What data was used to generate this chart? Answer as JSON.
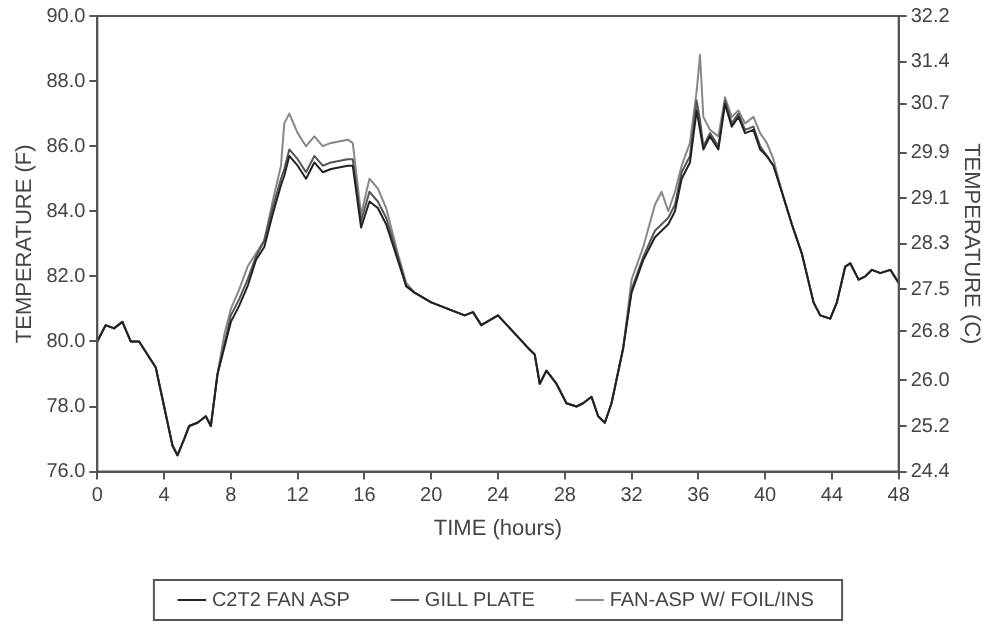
{
  "chart_data": {
    "type": "line",
    "xlabel": "TIME (hours)",
    "ylabel": "TEMPERATURE (F)",
    "y2label": "TEMPERATURE (C)",
    "x": [
      0,
      0.5,
      1,
      1.5,
      2,
      2.5,
      3,
      3.5,
      4,
      4.5,
      4.8,
      5.2,
      5.5,
      6,
      6.5,
      6.8,
      7.2,
      7.6,
      8,
      8.5,
      9,
      9.5,
      10,
      10.5,
      11,
      11.2,
      11.5,
      12,
      12.5,
      13,
      13.5,
      14,
      15,
      15.3,
      15.8,
      16.3,
      16.8,
      17.3,
      18,
      18.5,
      19,
      20,
      21,
      22,
      22.5,
      23,
      24,
      24.9,
      25.8,
      26.2,
      26.5,
      26.9,
      27.5,
      28.1,
      28.7,
      29.1,
      29.6,
      30,
      30.4,
      30.8,
      31.5,
      32,
      32.7,
      33.4,
      33.8,
      34.2,
      34.6,
      35,
      35.5,
      35.9,
      36.1,
      36.3,
      36.7,
      37.2,
      37.6,
      38,
      38.4,
      38.8,
      39.3,
      39.7,
      40.1,
      40.5,
      41,
      41.6,
      42.2,
      42.9,
      43.3,
      43.9,
      44.3,
      44.8,
      45.1,
      45.6,
      46,
      46.4,
      46.9,
      47.5,
      48
    ],
    "series": [
      {
        "name": "C2T2 FAN ASP",
        "color": "#222222",
        "values": [
          80.0,
          80.5,
          80.4,
          80.6,
          80.0,
          80.0,
          79.6,
          79.2,
          78.0,
          76.8,
          76.5,
          77.0,
          77.4,
          77.5,
          77.7,
          77.4,
          79.0,
          79.8,
          80.6,
          81.1,
          81.7,
          82.5,
          82.9,
          83.9,
          84.8,
          85.1,
          85.7,
          85.4,
          85.0,
          85.5,
          85.2,
          85.3,
          85.4,
          85.4,
          83.5,
          84.3,
          84.1,
          83.6,
          82.5,
          81.7,
          81.5,
          81.2,
          81.0,
          80.8,
          80.9,
          80.5,
          80.8,
          80.3,
          79.8,
          79.6,
          78.7,
          79.1,
          78.7,
          78.1,
          78.0,
          78.1,
          78.3,
          77.7,
          77.5,
          78.1,
          79.8,
          81.5,
          82.5,
          83.2,
          83.4,
          83.6,
          84.0,
          85.0,
          85.5,
          87.1,
          86.5,
          85.9,
          86.3,
          85.9,
          87.3,
          86.6,
          86.9,
          86.4,
          86.5,
          85.9,
          85.7,
          85.4,
          84.6,
          83.6,
          82.7,
          81.2,
          80.8,
          80.7,
          81.2,
          82.3,
          82.4,
          81.9,
          82.0,
          82.2,
          82.1,
          82.2,
          81.8
        ]
      },
      {
        "name": "GILL PLATE",
        "color": "#555555",
        "values": [
          80.0,
          80.5,
          80.4,
          80.6,
          80.0,
          80.0,
          79.6,
          79.2,
          78.0,
          76.8,
          76.5,
          77.0,
          77.4,
          77.5,
          77.7,
          77.4,
          79.0,
          79.9,
          80.8,
          81.3,
          81.9,
          82.6,
          83.1,
          84.1,
          85.0,
          85.3,
          85.9,
          85.6,
          85.2,
          85.7,
          85.4,
          85.5,
          85.6,
          85.6,
          83.7,
          84.6,
          84.3,
          83.8,
          82.6,
          81.7,
          81.5,
          81.2,
          81.0,
          80.8,
          80.9,
          80.5,
          80.8,
          80.3,
          79.8,
          79.6,
          78.7,
          79.1,
          78.7,
          78.1,
          78.0,
          78.1,
          78.3,
          77.7,
          77.5,
          78.1,
          79.8,
          81.6,
          82.6,
          83.4,
          83.6,
          83.8,
          84.2,
          85.2,
          85.7,
          87.4,
          86.8,
          86.0,
          86.4,
          86.0,
          87.4,
          86.7,
          87.0,
          86.5,
          86.6,
          86.0,
          85.7,
          85.4,
          84.6,
          83.6,
          82.7,
          81.2,
          80.8,
          80.7,
          81.2,
          82.3,
          82.4,
          81.9,
          82.0,
          82.2,
          82.1,
          82.2,
          81.8
        ]
      },
      {
        "name": "FAN-ASP W/ FOIL/INS",
        "color": "#888888",
        "values": [
          80.0,
          80.5,
          80.4,
          80.6,
          80.0,
          80.0,
          79.6,
          79.2,
          78.0,
          76.8,
          76.5,
          77.0,
          77.4,
          77.5,
          77.7,
          77.4,
          79.0,
          80.2,
          81.0,
          81.6,
          82.3,
          82.7,
          83.1,
          84.3,
          85.4,
          86.7,
          87.0,
          86.4,
          86.0,
          86.3,
          86.0,
          86.1,
          86.2,
          86.1,
          83.9,
          85.0,
          84.7,
          84.1,
          82.7,
          81.8,
          81.5,
          81.2,
          81.0,
          80.8,
          80.9,
          80.5,
          80.8,
          80.3,
          79.8,
          79.6,
          78.7,
          79.1,
          78.7,
          78.1,
          78.0,
          78.1,
          78.3,
          77.7,
          77.5,
          78.1,
          79.8,
          81.9,
          82.9,
          84.2,
          84.6,
          84.0,
          84.6,
          85.4,
          86.1,
          87.7,
          88.8,
          86.9,
          86.5,
          86.3,
          87.5,
          86.9,
          87.1,
          86.7,
          86.9,
          86.4,
          86.1,
          85.6,
          84.6,
          83.6,
          82.7,
          81.2,
          80.8,
          80.7,
          81.2,
          82.3,
          82.4,
          81.9,
          82.0,
          82.2,
          82.1,
          82.2,
          81.8
        ]
      }
    ],
    "xlim": [
      0,
      48
    ],
    "xticks": [
      0,
      4,
      8,
      12,
      16,
      20,
      24,
      28,
      32,
      36,
      40,
      44,
      48
    ],
    "ylim": [
      76,
      90
    ],
    "yticks": [
      {
        "value": 76,
        "label": "76.0"
      },
      {
        "value": 78,
        "label": "78.0"
      },
      {
        "value": 80,
        "label": "80.0"
      },
      {
        "value": 82,
        "label": "82.0"
      },
      {
        "value": 84,
        "label": "84.0"
      },
      {
        "value": 86,
        "label": "86.0"
      },
      {
        "value": 88,
        "label": "88.0"
      },
      {
        "value": 90,
        "label": "90.0"
      }
    ],
    "y2lim": [
      24.4,
      32.2
    ],
    "y2ticks": [
      24.4,
      {
        "value": 25.18,
        "label": "25.2"
      },
      {
        "value": 25.96,
        "label": "26.0"
      },
      {
        "value": 26.8,
        "label": "26.8"
      },
      {
        "value": 27.52,
        "label": "27.5"
      },
      28.3,
      {
        "value": 29.08,
        "label": "29.1"
      },
      {
        "value": 29.86,
        "label": "29.9"
      },
      {
        "value": 30.7,
        "label": "30.7"
      },
      {
        "value": 31.42,
        "label": "31.4"
      },
      32.2
    ],
    "grid": false,
    "legend": "bottom",
    "marker": "none",
    "line_style": "solid"
  }
}
